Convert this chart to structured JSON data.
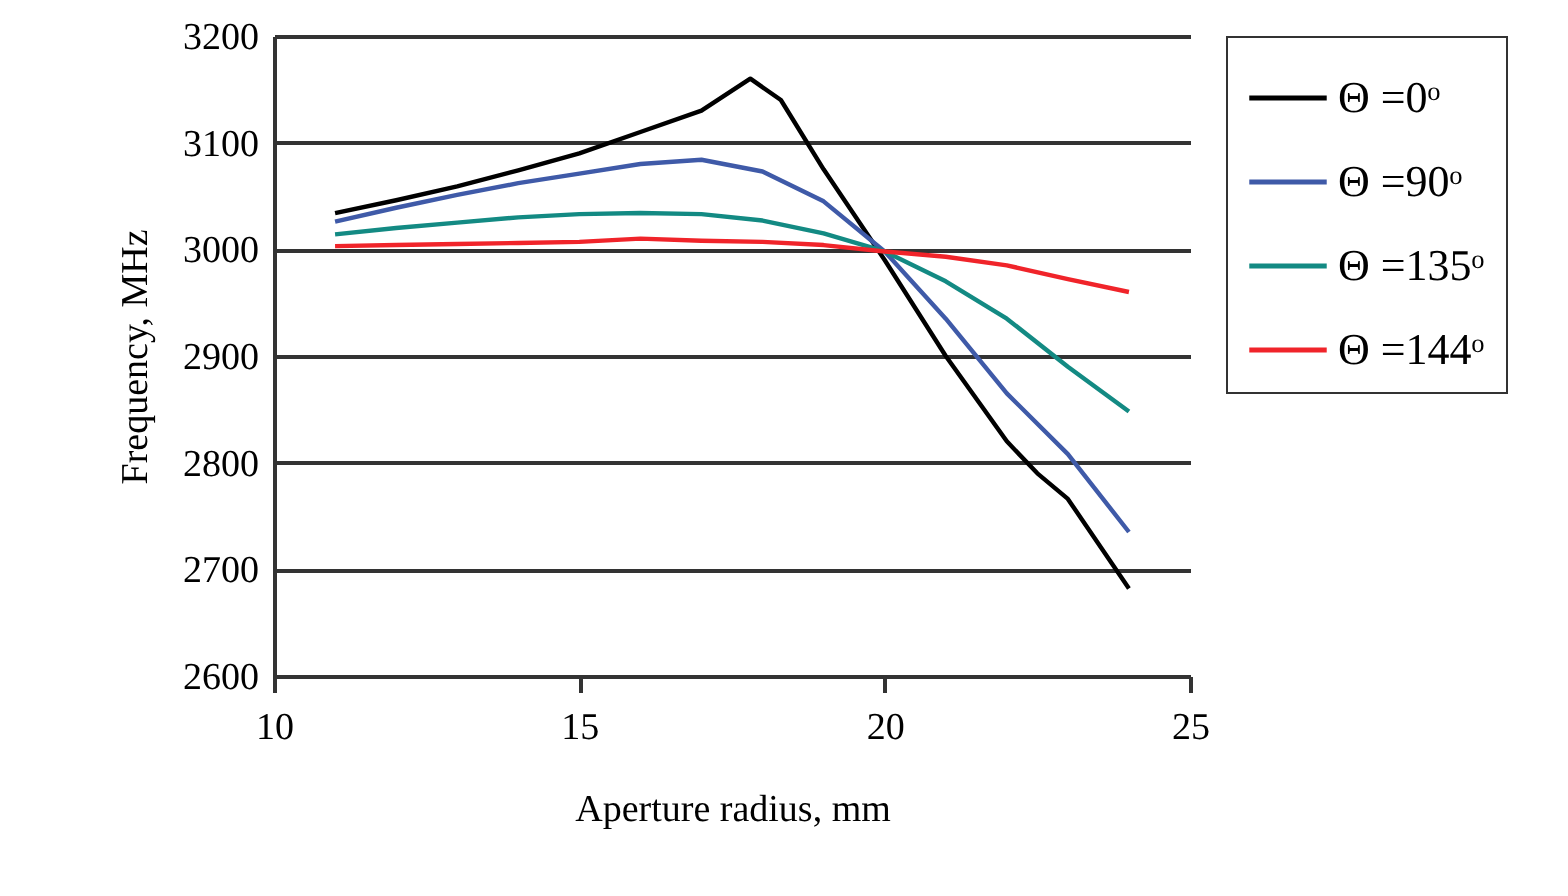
{
  "chart_data": {
    "type": "line",
    "xlabel": "Aperture radius, mm",
    "ylabel": "Frequency, MHz",
    "xlim": [
      10,
      25
    ],
    "xticks": [
      10,
      15,
      20,
      25
    ],
    "ylim": [
      2600,
      3200
    ],
    "yticks": [
      2600,
      2700,
      2800,
      2900,
      3000,
      3100,
      3200
    ],
    "grid": "y",
    "legend": "right",
    "marker": "none",
    "line_style": "solid",
    "series": [
      {
        "name": "Θ =0ᵒ",
        "color": "#000000",
        "x": [
          11,
          12,
          13,
          14,
          15,
          16,
          17,
          17.8,
          18.3,
          19,
          20,
          21,
          22,
          22.5,
          23,
          24
        ],
        "values": [
          3034,
          3046,
          3059,
          3074,
          3090,
          3110,
          3130,
          3160,
          3140,
          3075,
          2990,
          2900,
          2820,
          2790,
          2766,
          2682
        ]
      },
      {
        "name": "Θ =90ᵒ",
        "color": "#3f5aa8",
        "x": [
          11,
          12,
          13,
          14,
          15,
          16,
          17,
          18,
          19,
          20,
          21,
          22,
          23,
          24
        ],
        "values": [
          3026,
          3039,
          3051,
          3062,
          3071,
          3080,
          3084,
          3073,
          3045,
          2998,
          2935,
          2865,
          2808,
          2735
        ]
      },
      {
        "name": "Θ =135ᵒ",
        "color": "#138a83",
        "x": [
          11,
          12,
          13,
          14,
          15,
          16,
          17,
          18,
          19,
          20,
          21,
          22,
          23,
          24
        ],
        "values": [
          3014,
          3020,
          3025,
          3030,
          3033,
          3034,
          3033,
          3027,
          3015,
          2998,
          2970,
          2935,
          2890,
          2848
        ]
      },
      {
        "name": "Θ =144ᵒ",
        "color": "#f0242a",
        "x": [
          11,
          12,
          13,
          14,
          15,
          16,
          17,
          18,
          19,
          20,
          21,
          22,
          23,
          24
        ],
        "values": [
          3003,
          3004,
          3005,
          3006,
          3007,
          3010,
          3008,
          3007,
          3004,
          2998,
          2993,
          2985,
          2972,
          2960
        ]
      }
    ]
  }
}
